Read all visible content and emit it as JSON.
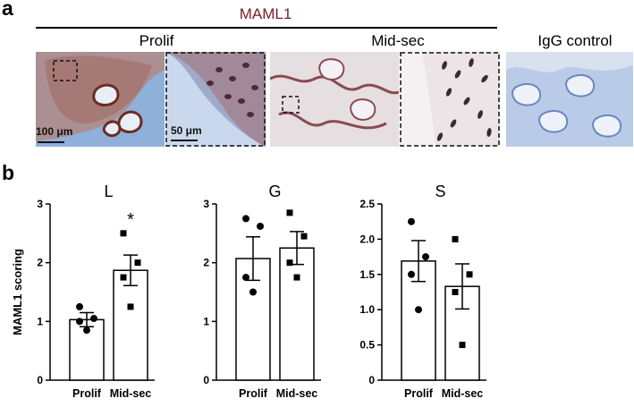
{
  "panel_a": {
    "letter": "a",
    "title": "MAML1",
    "groups": [
      {
        "label": "Prolif"
      },
      {
        "label": "Mid-sec"
      },
      {
        "label": "IgG control"
      }
    ],
    "scale_bars": [
      "100 μm",
      "50 μm"
    ]
  },
  "panel_b": {
    "letter": "b"
  },
  "colors": {
    "title": "#7a1f24",
    "stain_blue": "#7f9fce",
    "stain_brown": "#8a3c2c",
    "tissue_light": "#e9e3e4"
  },
  "chart_data": [
    {
      "type": "bar",
      "title": "L",
      "ylabel": "MAML1 scoring",
      "categories": [
        "Prolif",
        "Mid-sec"
      ],
      "values": [
        1.03,
        1.87
      ],
      "error": [
        0.12,
        0.26
      ],
      "points": [
        [
          1.25,
          1.05,
          1.0,
          0.85
        ],
        [
          2.5,
          2.0,
          1.75,
          1.25
        ]
      ],
      "markers": [
        "circle",
        "square"
      ],
      "ylim": [
        0,
        3
      ],
      "yticks": [
        "0",
        "1",
        "2",
        "3"
      ],
      "significance": [
        "",
        "*"
      ]
    },
    {
      "type": "bar",
      "title": "G",
      "ylabel": "",
      "categories": [
        "Prolif",
        "Mid-sec"
      ],
      "values": [
        2.07,
        2.25
      ],
      "error": [
        0.37,
        0.28
      ],
      "points": [
        [
          2.75,
          2.62,
          1.75,
          1.5
        ],
        [
          2.85,
          2.45,
          2.0,
          1.75
        ]
      ],
      "markers": [
        "circle",
        "square"
      ],
      "ylim": [
        0,
        3
      ],
      "yticks": [
        "0",
        "1",
        "2",
        "3"
      ],
      "significance": [
        "",
        ""
      ]
    },
    {
      "type": "bar",
      "title": "S",
      "ylabel": "",
      "categories": [
        "Prolif",
        "Mid-sec"
      ],
      "values": [
        1.69,
        1.33
      ],
      "error": [
        0.29,
        0.32
      ],
      "points": [
        [
          2.25,
          1.75,
          1.5,
          1.0
        ],
        [
          2.0,
          1.5,
          1.25,
          0.5
        ]
      ],
      "markers": [
        "circle",
        "square"
      ],
      "ylim": [
        0,
        2.5
      ],
      "yticks": [
        "0",
        "0.5",
        "1.0",
        "1.5",
        "2.0",
        "2.5"
      ],
      "significance": [
        "",
        ""
      ]
    }
  ]
}
